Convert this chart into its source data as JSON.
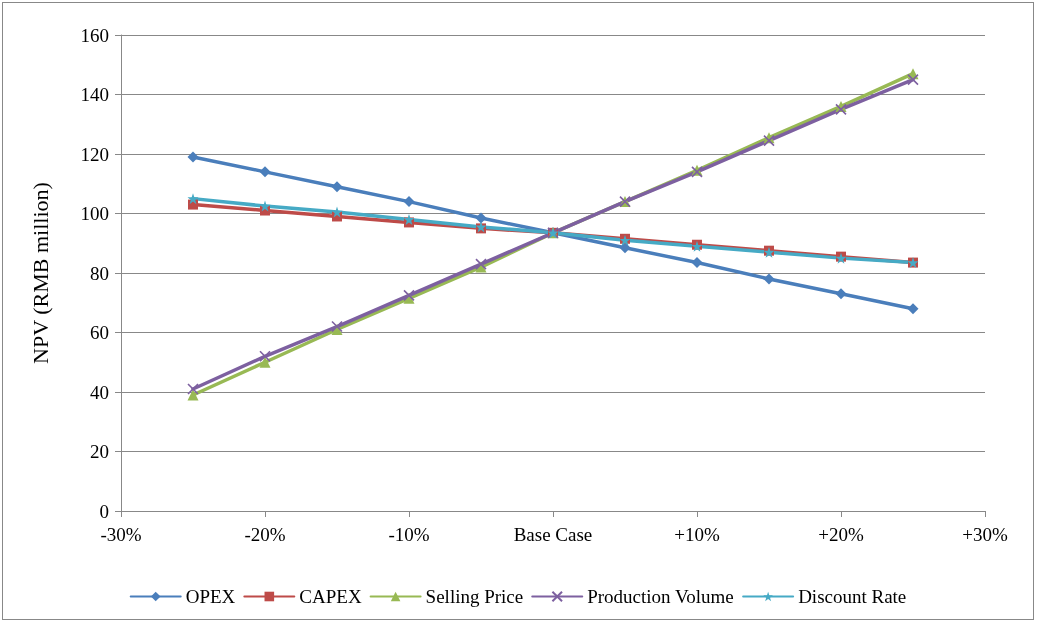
{
  "chart_data": {
    "type": "line",
    "ylabel": "NPV (RMB million)",
    "x": [
      -25,
      -20,
      -15,
      -10,
      -5,
      0,
      5,
      10,
      15,
      20,
      25
    ],
    "xlim": [
      -30,
      30
    ],
    "xticks": [
      {
        "value": -30,
        "label": "-30%"
      },
      {
        "value": -20,
        "label": "-20%"
      },
      {
        "value": -10,
        "label": "-10%"
      },
      {
        "value": 0,
        "label": "Base Case"
      },
      {
        "value": 10,
        "label": "+10%"
      },
      {
        "value": 20,
        "label": "+20%"
      },
      {
        "value": 30,
        "label": "+30%"
      }
    ],
    "ylim": [
      0,
      160
    ],
    "yticks": [
      0,
      20,
      40,
      60,
      80,
      100,
      120,
      140,
      160
    ],
    "grid": "y",
    "legend": "bottom",
    "line_style": "solid",
    "series": [
      {
        "name": "OPEX",
        "color": "#4a7ebb",
        "marker": "diamond",
        "values": [
          119,
          114,
          109,
          104,
          98.5,
          93.5,
          88.5,
          83.5,
          78,
          73,
          68
        ]
      },
      {
        "name": "CAPEX",
        "color": "#be4b48",
        "marker": "square",
        "values": [
          103,
          101,
          99,
          97,
          95,
          93.5,
          91.5,
          89.5,
          87.5,
          85.5,
          83.5
        ]
      },
      {
        "name": "Selling Price",
        "color": "#98b954",
        "marker": "triangle",
        "values": [
          39,
          50,
          61,
          71.5,
          82,
          93.5,
          104,
          114.5,
          125.5,
          136,
          147
        ]
      },
      {
        "name": "Production Volume",
        "color": "#7d60a0",
        "marker": "cross",
        "values": [
          41,
          52,
          62,
          72.5,
          83,
          93.5,
          104,
          114,
          124.5,
          135,
          145
        ]
      },
      {
        "name": "Discount Rate",
        "color": "#46aac5",
        "marker": "star",
        "values": [
          105,
          102.5,
          100.5,
          98,
          95.5,
          93.5,
          91,
          89,
          87,
          85,
          83.5
        ]
      }
    ]
  }
}
